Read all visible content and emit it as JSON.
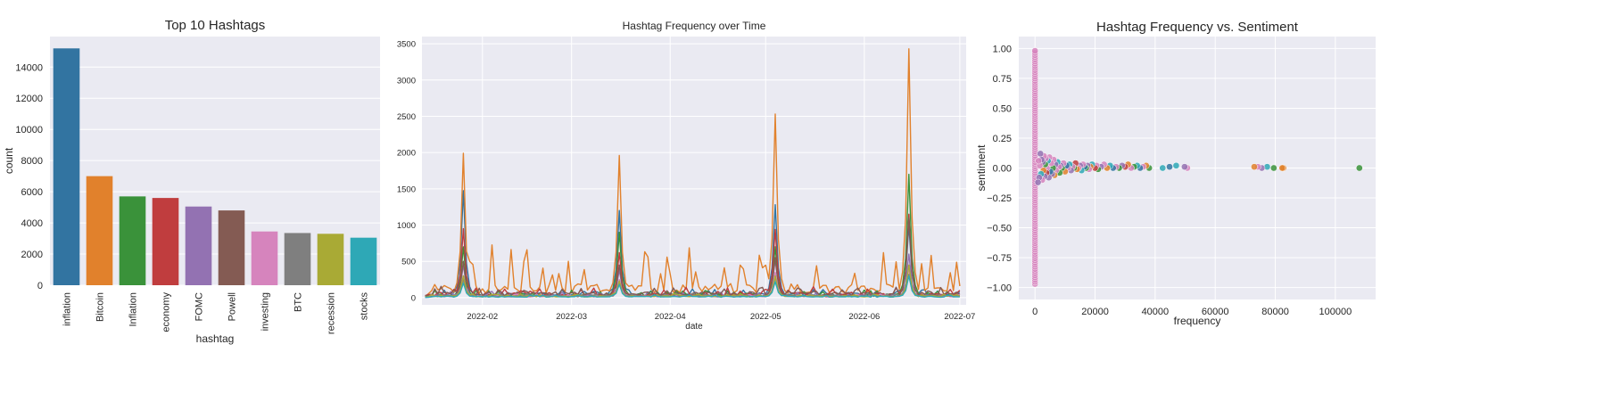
{
  "colors": {
    "background": "#eaeaf2",
    "grid": "#ffffff",
    "text": "#262626",
    "palette": [
      "#3274a1",
      "#e1812c",
      "#3a923a",
      "#c03d3e",
      "#9372b2",
      "#845b53",
      "#d684bd",
      "#7f7f7f",
      "#a9aa35",
      "#2ea8b6"
    ]
  },
  "chart_data": [
    {
      "type": "bar",
      "title": "Top 10 Hashtags",
      "xlabel": "hashtag",
      "ylabel": "count",
      "categories": [
        "inflation",
        "Bitcoin",
        "Inflation",
        "economy",
        "FOMC",
        "Powell",
        "investing",
        "BTC",
        "recession",
        "stocks"
      ],
      "values": [
        15200,
        7000,
        5700,
        5600,
        5050,
        4800,
        3450,
        3350,
        3300,
        3050
      ],
      "yticks": [
        0,
        2000,
        4000,
        6000,
        8000,
        10000,
        12000,
        14000
      ],
      "ylim": [
        0,
        15960
      ],
      "grid": true
    },
    {
      "type": "line",
      "title": "Hashtag Frequency over Time",
      "xlabel": "date",
      "ylabel": "",
      "xticks": [
        "2022-02",
        "2022-03",
        "2022-04",
        "2022-05",
        "2022-06",
        "2022-07"
      ],
      "xlim": [
        "2022-01-13",
        "2022-07-03"
      ],
      "ylim": [
        -100,
        3600
      ],
      "yticks": [
        0,
        500,
        1000,
        1500,
        2000,
        2500,
        3000,
        3500
      ],
      "grid": true,
      "series": [
        {
          "base": 50,
          "amp": 25,
          "peaks": [
            [
              "2022-01-26",
              1475
            ],
            [
              "2022-03-16",
              1200
            ],
            [
              "2022-05-04",
              1280
            ],
            [
              "2022-06-15",
              1000
            ]
          ]
        },
        {
          "base": 150,
          "amp": 180,
          "peaks": [
            [
              "2022-01-26",
              1990
            ],
            [
              "2022-03-16",
              1960
            ],
            [
              "2022-05-04",
              2530
            ],
            [
              "2022-06-15",
              3430
            ]
          ]
        },
        {
          "base": 40,
          "amp": 20,
          "peaks": [
            [
              "2022-01-26",
              700
            ],
            [
              "2022-03-16",
              900
            ],
            [
              "2022-05-04",
              700
            ],
            [
              "2022-06-15",
              1700
            ]
          ]
        },
        {
          "base": 50,
          "amp": 30,
          "peaks": [
            [
              "2022-01-26",
              950
            ],
            [
              "2022-03-16",
              620
            ],
            [
              "2022-05-04",
              940
            ],
            [
              "2022-06-15",
              1150
            ]
          ]
        },
        {
          "base": 30,
          "amp": 15,
          "peaks": [
            [
              "2022-01-26",
              450
            ],
            [
              "2022-03-16",
              380
            ],
            [
              "2022-05-04",
              520
            ],
            [
              "2022-06-15",
              600
            ]
          ]
        },
        {
          "base": 60,
          "amp": 25,
          "peaks": [
            [
              "2022-01-26",
              500
            ],
            [
              "2022-03-16",
              450
            ],
            [
              "2022-05-04",
              550
            ],
            [
              "2022-06-15",
              1100
            ]
          ]
        },
        {
          "base": 20,
          "amp": 10,
          "peaks": [
            [
              "2022-01-26",
              300
            ],
            [
              "2022-03-16",
              250
            ],
            [
              "2022-05-04",
              350
            ],
            [
              "2022-06-15",
              400
            ]
          ]
        },
        {
          "base": 25,
          "amp": 10,
          "peaks": [
            [
              "2022-01-26",
              250
            ],
            [
              "2022-03-16",
              200
            ],
            [
              "2022-05-04",
              280
            ],
            [
              "2022-06-15",
              320
            ]
          ]
        },
        {
          "base": 20,
          "amp": 10,
          "peaks": [
            [
              "2022-01-26",
              300
            ],
            [
              "2022-03-16",
              230
            ],
            [
              "2022-05-04",
              300
            ],
            [
              "2022-06-15",
              450
            ]
          ]
        },
        {
          "base": 15,
          "amp": 8,
          "peaks": [
            [
              "2022-01-26",
              200
            ],
            [
              "2022-03-16",
              180
            ],
            [
              "2022-05-04",
              220
            ],
            [
              "2022-06-15",
              300
            ]
          ]
        }
      ]
    },
    {
      "type": "scatter",
      "title": "Hashtag Frequency vs. Sentiment",
      "xlabel": "frequency",
      "ylabel": "sentiment",
      "xlim": [
        -5400,
        113400
      ],
      "ylim": [
        -1.1,
        1.1
      ],
      "xticks": [
        0,
        20000,
        40000,
        60000,
        80000,
        100000
      ],
      "yticks": [
        -1.0,
        -0.75,
        -0.5,
        -0.25,
        0.0,
        0.25,
        0.5,
        0.75,
        1.0
      ],
      "grid": true,
      "points": [
        [
          108000,
          0.0,
          2
        ],
        [
          82700,
          0.0,
          1
        ],
        [
          82300,
          0.0,
          1
        ],
        [
          79500,
          0.0,
          2
        ],
        [
          77300,
          0.01,
          9
        ],
        [
          75500,
          0.0,
          4
        ],
        [
          74200,
          0.01,
          6
        ],
        [
          73000,
          0.01,
          1
        ],
        [
          50700,
          0.0,
          6
        ],
        [
          49800,
          0.01,
          4
        ],
        [
          47000,
          0.02,
          9
        ],
        [
          44800,
          0.01,
          0
        ],
        [
          42500,
          0.0,
          9
        ],
        [
          38000,
          0.0,
          2
        ],
        [
          37000,
          0.02,
          1
        ],
        [
          36000,
          0.01,
          6
        ],
        [
          35000,
          0.0,
          0
        ],
        [
          34000,
          0.02,
          9
        ],
        [
          33000,
          0.01,
          2
        ],
        [
          32000,
          0.0,
          6
        ],
        [
          31000,
          0.03,
          1
        ],
        [
          30000,
          0.01,
          3
        ],
        [
          29000,
          0.02,
          4
        ],
        [
          28000,
          0.0,
          2
        ],
        [
          27000,
          0.01,
          6
        ],
        [
          26000,
          0.0,
          0
        ],
        [
          25000,
          0.02,
          9
        ],
        [
          24000,
          0.0,
          1
        ],
        [
          23000,
          0.03,
          6
        ],
        [
          22000,
          0.01,
          4
        ],
        [
          21000,
          -0.01,
          2
        ],
        [
          20500,
          0.02,
          6
        ],
        [
          20000,
          0.0,
          3
        ],
        [
          19000,
          0.03,
          9
        ],
        [
          18500,
          0.01,
          1
        ],
        [
          18000,
          -0.01,
          6
        ],
        [
          17500,
          0.02,
          4
        ],
        [
          17000,
          0.0,
          2
        ],
        [
          16500,
          0.01,
          0
        ],
        [
          16000,
          0.03,
          6
        ],
        [
          15500,
          -0.02,
          9
        ],
        [
          15000,
          0.02,
          4
        ],
        [
          14500,
          0.0,
          6
        ],
        [
          14000,
          -0.01,
          1
        ],
        [
          13500,
          0.04,
          3
        ],
        [
          13000,
          0.0,
          2
        ],
        [
          12500,
          0.01,
          6
        ],
        [
          12000,
          -0.02,
          4
        ],
        [
          11500,
          0.03,
          9
        ],
        [
          11000,
          0.0,
          6
        ],
        [
          10500,
          0.02,
          0
        ],
        [
          10000,
          -0.03,
          1
        ],
        [
          9500,
          0.04,
          6
        ],
        [
          9000,
          0.0,
          2
        ],
        [
          8500,
          0.02,
          4
        ],
        [
          8200,
          -0.04,
          2
        ],
        [
          8000,
          0.01,
          6
        ],
        [
          7500,
          0.05,
          9
        ],
        [
          7000,
          -0.02,
          6
        ],
        [
          6800,
          0.03,
          4
        ],
        [
          6500,
          -0.06,
          1
        ],
        [
          6200,
          0.07,
          6
        ],
        [
          6000,
          0.0,
          2
        ],
        [
          5700,
          -0.05,
          4
        ],
        [
          5400,
          0.04,
          6
        ],
        [
          5100,
          -0.03,
          0
        ],
        [
          4800,
          0.09,
          6
        ],
        [
          4600,
          -0.08,
          4
        ],
        [
          4300,
          0.06,
          9
        ],
        [
          4000,
          0.0,
          6
        ],
        [
          3800,
          -0.04,
          3
        ],
        [
          3600,
          0.08,
          6
        ],
        [
          3400,
          0.03,
          2
        ],
        [
          3200,
          -0.07,
          4
        ],
        [
          3000,
          0.1,
          6
        ],
        [
          2800,
          -0.02,
          1
        ],
        [
          2600,
          0.05,
          4
        ],
        [
          2400,
          -0.1,
          6
        ],
        [
          2200,
          0.07,
          4
        ],
        [
          2000,
          -0.05,
          9
        ],
        [
          1800,
          0.12,
          4
        ],
        [
          1600,
          0.02,
          6
        ],
        [
          1400,
          -0.08,
          4
        ],
        [
          1200,
          0.06,
          6
        ],
        [
          1000,
          -0.12,
          4
        ]
      ],
      "vertical_strip": {
        "x": 0,
        "y_min": -0.97,
        "y_max": 0.98,
        "count": 110,
        "color_index": 6
      }
    }
  ]
}
